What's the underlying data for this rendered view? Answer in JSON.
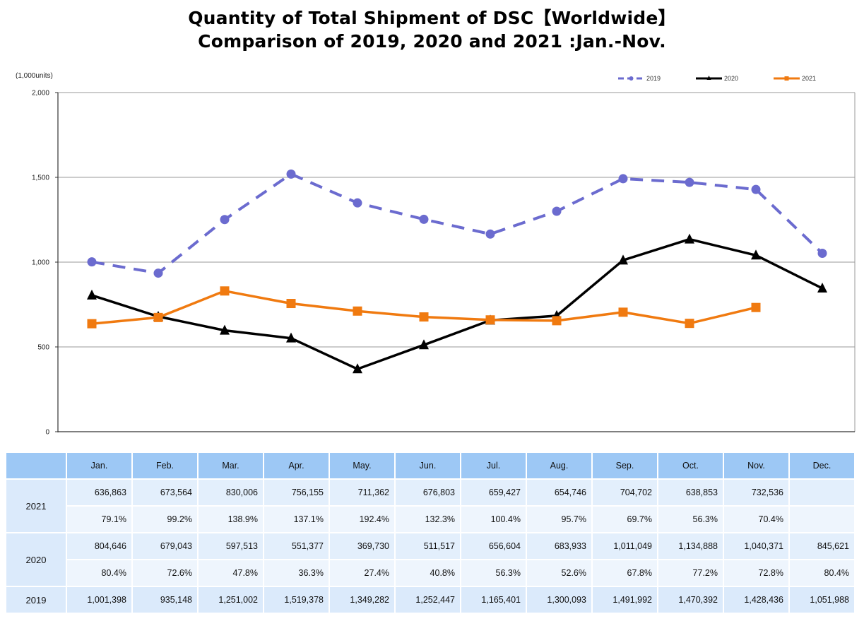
{
  "title_line1": "Quantity of Total Shipment of DSC【Worldwide】",
  "title_line2": "Comparison of 2019, 2020 and 2021 :Jan.-Nov.",
  "chart_data": {
    "type": "line",
    "title": "Quantity of Total Shipment of DSC【Worldwide】 Comparison of 2019, 2020 and 2021 :Jan.-Nov.",
    "ylabel": "(1,000units)",
    "xlabel": "",
    "ylim": [
      0,
      2000
    ],
    "yticks": [
      0,
      500,
      1000,
      1500,
      2000
    ],
    "ytick_labels": [
      "0",
      "500",
      "1,000",
      "1,500",
      "2,000"
    ],
    "grid": true,
    "legend_position": "top-right",
    "categories": [
      "Jan.",
      "Feb.",
      "Mar.",
      "Apr.",
      "May.",
      "Jun.",
      "Jul.",
      "Aug.",
      "Sep.",
      "Oct.",
      "Nov.",
      "Dec."
    ],
    "series": [
      {
        "name": "2019",
        "color": "#6b6bcf",
        "style": "dashed",
        "marker": "circle",
        "values": [
          1001.398,
          935.148,
          1251.002,
          1519.378,
          1349.282,
          1252.447,
          1165.401,
          1300.093,
          1491.992,
          1470.392,
          1428.436,
          1051.988
        ]
      },
      {
        "name": "2020",
        "color": "#000000",
        "style": "solid",
        "marker": "triangle",
        "values": [
          804.646,
          679.043,
          597.513,
          551.377,
          369.73,
          511.517,
          656.604,
          683.933,
          1011.049,
          1134.888,
          1040.371,
          845.621
        ]
      },
      {
        "name": "2021",
        "color": "#f07a10",
        "style": "solid",
        "marker": "square",
        "values": [
          636.863,
          673.564,
          830.006,
          756.155,
          711.362,
          676.803,
          659.427,
          654.746,
          704.702,
          638.853,
          732.536,
          null
        ]
      }
    ]
  },
  "table": {
    "headers": [
      "",
      "Jan.",
      "Feb.",
      "Mar.",
      "Apr.",
      "May.",
      "Jun.",
      "Jul.",
      "Aug.",
      "Sep.",
      "Oct.",
      "Nov.",
      "Dec."
    ],
    "rows": [
      {
        "year": "2021",
        "values": [
          "636,863",
          "673,564",
          "830,006",
          "756,155",
          "711,362",
          "676,803",
          "659,427",
          "654,746",
          "704,702",
          "638,853",
          "732,536",
          ""
        ],
        "pct": [
          "79.1%",
          "99.2%",
          "138.9%",
          "137.1%",
          "192.4%",
          "132.3%",
          "100.4%",
          "95.7%",
          "69.7%",
          "56.3%",
          "70.4%",
          ""
        ]
      },
      {
        "year": "2020",
        "values": [
          "804,646",
          "679,043",
          "597,513",
          "551,377",
          "369,730",
          "511,517",
          "656,604",
          "683,933",
          "1,011,049",
          "1,134,888",
          "1,040,371",
          "845,621"
        ],
        "pct": [
          "80.4%",
          "72.6%",
          "47.8%",
          "36.3%",
          "27.4%",
          "40.8%",
          "56.3%",
          "52.6%",
          "67.8%",
          "77.2%",
          "72.8%",
          "80.4%"
        ]
      },
      {
        "year": "2019",
        "values": [
          "1,001,398",
          "935,148",
          "1,251,002",
          "1,519,378",
          "1,349,282",
          "1,252,447",
          "1,165,401",
          "1,300,093",
          "1,491,992",
          "1,470,392",
          "1,428,436",
          "1,051,988"
        ]
      }
    ]
  }
}
